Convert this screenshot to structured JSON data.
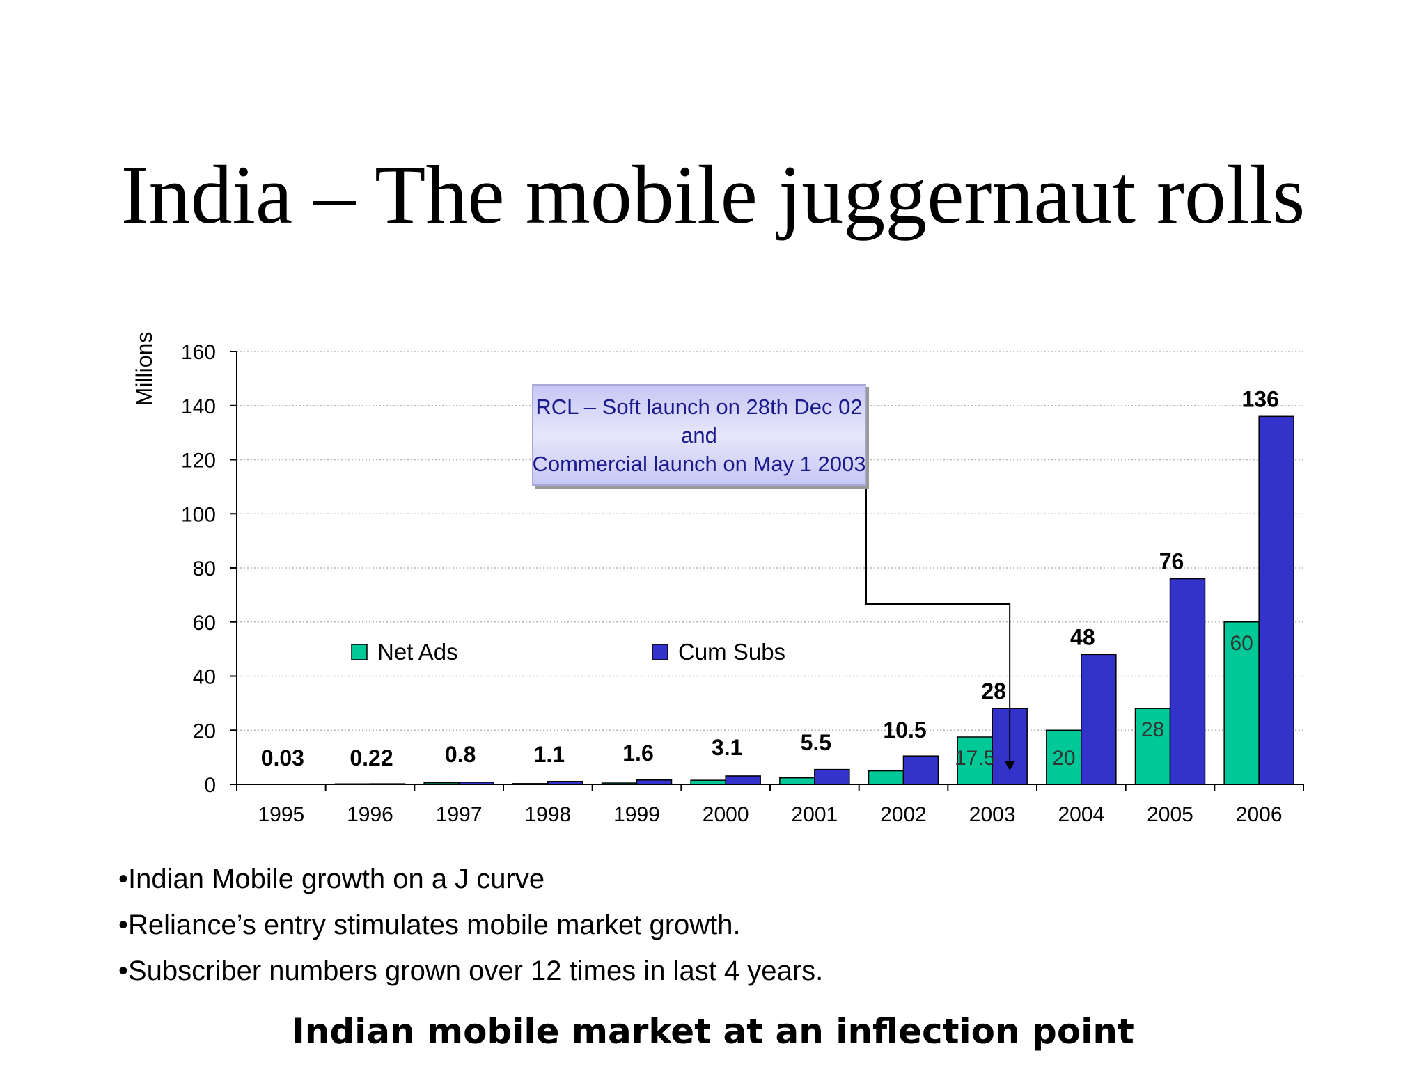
{
  "title": "India – The mobile juggernaut rolls",
  "chart_data": {
    "type": "bar",
    "categories": [
      "1995",
      "1996",
      "1997",
      "1998",
      "1999",
      "2000",
      "2001",
      "2002",
      "2003",
      "2004",
      "2005",
      "2006"
    ],
    "series": [
      {
        "name": "Net Ads",
        "color": "#00c896",
        "values": [
          0.02,
          0.19,
          0.58,
          0.3,
          0.5,
          1.5,
          2.4,
          5.0,
          17.5,
          20,
          28,
          60
        ],
        "labels": [
          "",
          "",
          "",
          "",
          "",
          "",
          "",
          "",
          "17.5",
          "20",
          "28",
          "60"
        ]
      },
      {
        "name": "Cum Subs",
        "color": "#3333cc",
        "values": [
          0.03,
          0.22,
          0.8,
          1.1,
          1.6,
          3.1,
          5.5,
          10.5,
          28,
          48,
          76,
          136
        ],
        "labels": [
          "0.03",
          "0.22",
          "0.8",
          "1.1",
          "1.6",
          "3.1",
          "5.5",
          "10.5",
          "28",
          "48",
          "76",
          "136"
        ]
      }
    ],
    "ylabel": "Millions",
    "ylim": [
      0,
      160
    ],
    "yticks": [
      0,
      20,
      40,
      60,
      80,
      100,
      120,
      140,
      160
    ],
    "grid": true,
    "legend_position": "center-left",
    "annotation": {
      "lines": [
        "RCL – Soft launch on 28th Dec 02",
        "and",
        "Commercial launch on May 1 2003"
      ],
      "points_to": "2003"
    }
  },
  "bullets": [
    "•Indian Mobile growth on a J curve",
    "•Reliance’s entry stimulates mobile market growth.",
    "•Subscriber numbers grown over 12 times in last 4 years."
  ],
  "conclusion": "Indian mobile market at an inflection point"
}
